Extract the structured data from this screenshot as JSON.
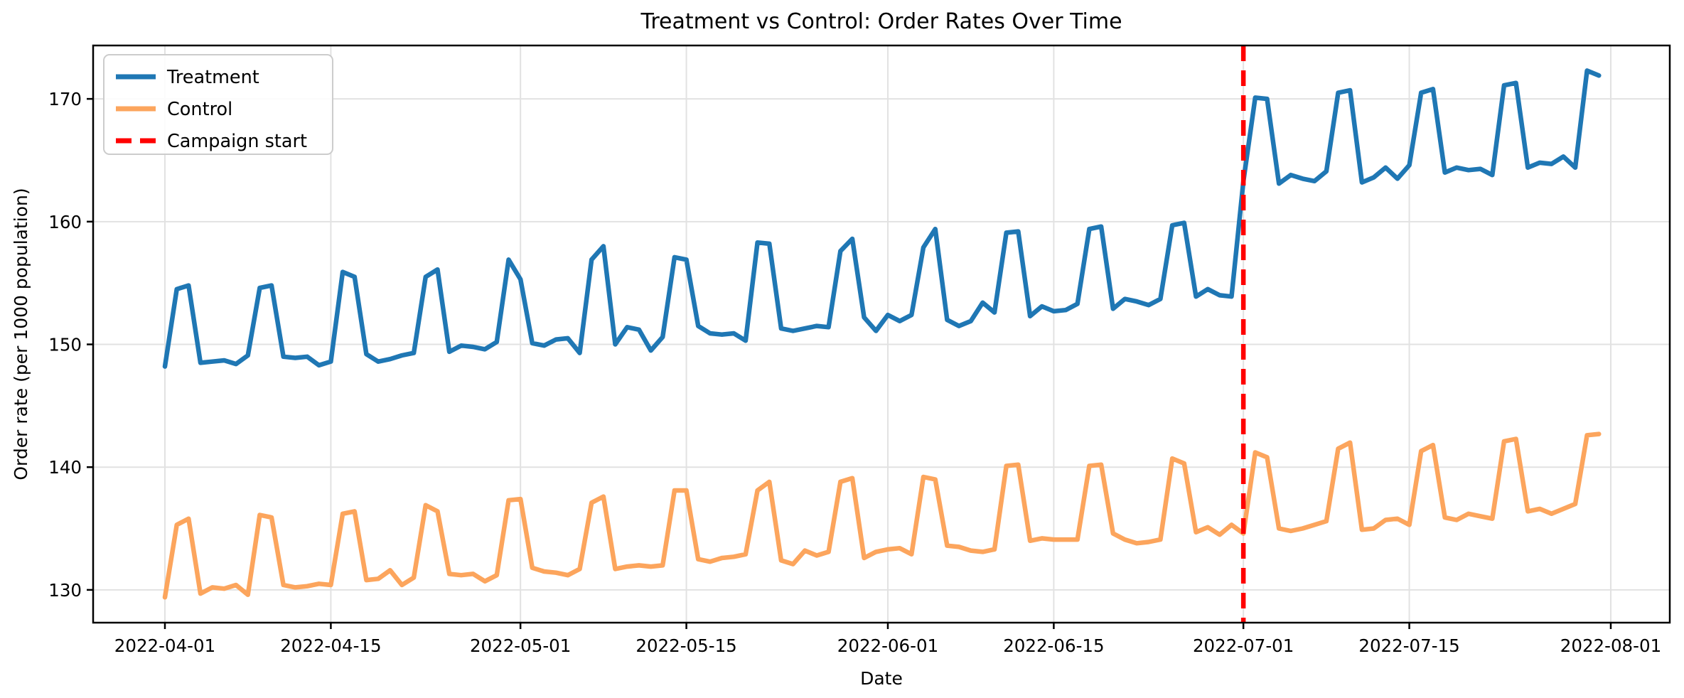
{
  "figure": {
    "title": "Treatment vs Control: Order Rates Over Time",
    "xlabel": "Date",
    "ylabel": "Order rate (per 1000 population)",
    "background_color": "#ffffff",
    "spine_color": "#000000",
    "grid_color": "#e2e2e2"
  },
  "legend": {
    "position": "upper-left",
    "items": [
      {
        "label": "Treatment",
        "color": "#1f77b4",
        "dash": "none"
      },
      {
        "label": "Control",
        "color": "#fca55d",
        "dash": "none"
      },
      {
        "label": "Campaign start",
        "color": "#ff0000",
        "dash": "22 12"
      }
    ]
  },
  "chart_data": {
    "type": "line",
    "title": "Treatment vs Control: Order Rates Over Time",
    "xlabel": "Date",
    "ylabel": "Order rate (per 1000 population)",
    "grid": true,
    "legend_position": "upper-left",
    "ylim": [
      127.33,
      174.35
    ],
    "y_ticks": [
      130,
      140,
      150,
      160,
      170
    ],
    "x_ticks": [
      "2022-04-01",
      "2022-04-15",
      "2022-05-01",
      "2022-05-15",
      "2022-06-01",
      "2022-06-15",
      "2022-07-01",
      "2022-07-15",
      "2022-08-01"
    ],
    "dates": [
      "2022-04-01",
      "2022-04-02",
      "2022-04-03",
      "2022-04-04",
      "2022-04-05",
      "2022-04-06",
      "2022-04-07",
      "2022-04-08",
      "2022-04-09",
      "2022-04-10",
      "2022-04-11",
      "2022-04-12",
      "2022-04-13",
      "2022-04-14",
      "2022-04-15",
      "2022-04-16",
      "2022-04-17",
      "2022-04-18",
      "2022-04-19",
      "2022-04-20",
      "2022-04-21",
      "2022-04-22",
      "2022-04-23",
      "2022-04-24",
      "2022-04-25",
      "2022-04-26",
      "2022-04-27",
      "2022-04-28",
      "2022-04-29",
      "2022-04-30",
      "2022-05-01",
      "2022-05-02",
      "2022-05-03",
      "2022-05-04",
      "2022-05-05",
      "2022-05-06",
      "2022-05-07",
      "2022-05-08",
      "2022-05-09",
      "2022-05-10",
      "2022-05-11",
      "2022-05-12",
      "2022-05-13",
      "2022-05-14",
      "2022-05-15",
      "2022-05-16",
      "2022-05-17",
      "2022-05-18",
      "2022-05-19",
      "2022-05-20",
      "2022-05-21",
      "2022-05-22",
      "2022-05-23",
      "2022-05-24",
      "2022-05-25",
      "2022-05-26",
      "2022-05-27",
      "2022-05-28",
      "2022-05-29",
      "2022-05-30",
      "2022-05-31",
      "2022-06-01",
      "2022-06-02",
      "2022-06-03",
      "2022-06-04",
      "2022-06-05",
      "2022-06-06",
      "2022-06-07",
      "2022-06-08",
      "2022-06-09",
      "2022-06-10",
      "2022-06-11",
      "2022-06-12",
      "2022-06-13",
      "2022-06-14",
      "2022-06-15",
      "2022-06-16",
      "2022-06-17",
      "2022-06-18",
      "2022-06-19",
      "2022-06-20",
      "2022-06-21",
      "2022-06-22",
      "2022-06-23",
      "2022-06-24",
      "2022-06-25",
      "2022-06-26",
      "2022-06-27",
      "2022-06-28",
      "2022-06-29",
      "2022-06-30",
      "2022-07-01",
      "2022-07-02",
      "2022-07-03",
      "2022-07-04",
      "2022-07-05",
      "2022-07-06",
      "2022-07-07",
      "2022-07-08",
      "2022-07-09",
      "2022-07-10",
      "2022-07-11",
      "2022-07-12",
      "2022-07-13",
      "2022-07-14",
      "2022-07-15",
      "2022-07-16",
      "2022-07-17",
      "2022-07-18",
      "2022-07-19",
      "2022-07-20",
      "2022-07-21",
      "2022-07-22",
      "2022-07-23",
      "2022-07-24",
      "2022-07-25",
      "2022-07-26",
      "2022-07-27",
      "2022-07-28",
      "2022-07-29",
      "2022-07-30",
      "2022-07-31"
    ],
    "series": [
      {
        "name": "Treatment",
        "color": "#1f77b4",
        "style": "solid",
        "values": [
          148.2,
          154.5,
          154.8,
          148.5,
          148.6,
          148.7,
          148.4,
          149.1,
          154.6,
          154.8,
          149.0,
          148.9,
          149.0,
          148.3,
          148.6,
          155.9,
          155.5,
          149.2,
          148.6,
          148.8,
          149.1,
          149.3,
          155.5,
          156.1,
          149.4,
          149.9,
          149.8,
          149.6,
          150.2,
          156.9,
          155.3,
          150.1,
          149.9,
          150.4,
          150.5,
          149.3,
          156.9,
          158.0,
          150.0,
          151.4,
          151.2,
          149.5,
          150.6,
          157.1,
          156.9,
          151.5,
          150.9,
          150.8,
          150.9,
          150.3,
          158.3,
          158.2,
          151.3,
          151.1,
          151.3,
          151.5,
          151.4,
          157.6,
          158.6,
          152.2,
          151.1,
          152.4,
          151.9,
          152.4,
          157.9,
          159.4,
          152.0,
          151.5,
          151.9,
          153.4,
          152.6,
          159.1,
          159.2,
          152.3,
          153.1,
          152.7,
          152.8,
          153.3,
          159.4,
          159.6,
          152.9,
          153.7,
          153.5,
          153.2,
          153.7,
          159.7,
          159.9,
          153.9,
          154.5,
          154.0,
          153.9,
          163.3,
          170.1,
          170.0,
          163.1,
          163.8,
          163.5,
          163.3,
          164.1,
          170.5,
          170.7,
          163.2,
          163.6,
          164.4,
          163.5,
          164.6,
          170.5,
          170.8,
          164.0,
          164.4,
          164.2,
          164.3,
          163.8,
          171.1,
          171.3,
          164.4,
          164.8,
          164.7,
          165.3,
          164.4,
          172.3,
          171.9
        ]
      },
      {
        "name": "Control",
        "color": "#fca55d",
        "style": "solid",
        "values": [
          129.4,
          135.3,
          135.8,
          129.7,
          130.2,
          130.1,
          130.4,
          129.6,
          136.1,
          135.9,
          130.4,
          130.2,
          130.3,
          130.5,
          130.4,
          136.2,
          136.4,
          130.8,
          130.9,
          131.6,
          130.4,
          131.0,
          136.9,
          136.4,
          131.3,
          131.2,
          131.3,
          130.7,
          131.2,
          137.3,
          137.4,
          131.8,
          131.5,
          131.4,
          131.2,
          131.7,
          137.1,
          137.6,
          131.7,
          131.9,
          132.0,
          131.9,
          132.0,
          138.1,
          138.1,
          132.5,
          132.3,
          132.6,
          132.7,
          132.9,
          138.1,
          138.8,
          132.4,
          132.1,
          133.2,
          132.8,
          133.1,
          138.8,
          139.1,
          132.6,
          133.1,
          133.3,
          133.4,
          132.9,
          139.2,
          139.0,
          133.6,
          133.5,
          133.2,
          133.1,
          133.3,
          140.1,
          140.2,
          134.0,
          134.2,
          134.1,
          134.1,
          134.1,
          140.1,
          140.2,
          134.6,
          134.1,
          133.8,
          133.9,
          134.1,
          140.7,
          140.3,
          134.7,
          135.1,
          134.5,
          135.3,
          134.6,
          141.2,
          140.8,
          135.0,
          134.8,
          135.0,
          135.3,
          135.6,
          141.5,
          142.0,
          134.9,
          135.0,
          135.7,
          135.8,
          135.3,
          141.3,
          141.8,
          135.9,
          135.7,
          136.2,
          136.0,
          135.8,
          142.1,
          142.3,
          136.4,
          136.6,
          136.2,
          136.6,
          137.0,
          142.6,
          142.7
        ]
      }
    ],
    "annotations": [
      {
        "name": "Campaign start",
        "type": "vline",
        "date": "2022-07-01",
        "color": "#ff0000",
        "style": "dashed"
      }
    ]
  }
}
